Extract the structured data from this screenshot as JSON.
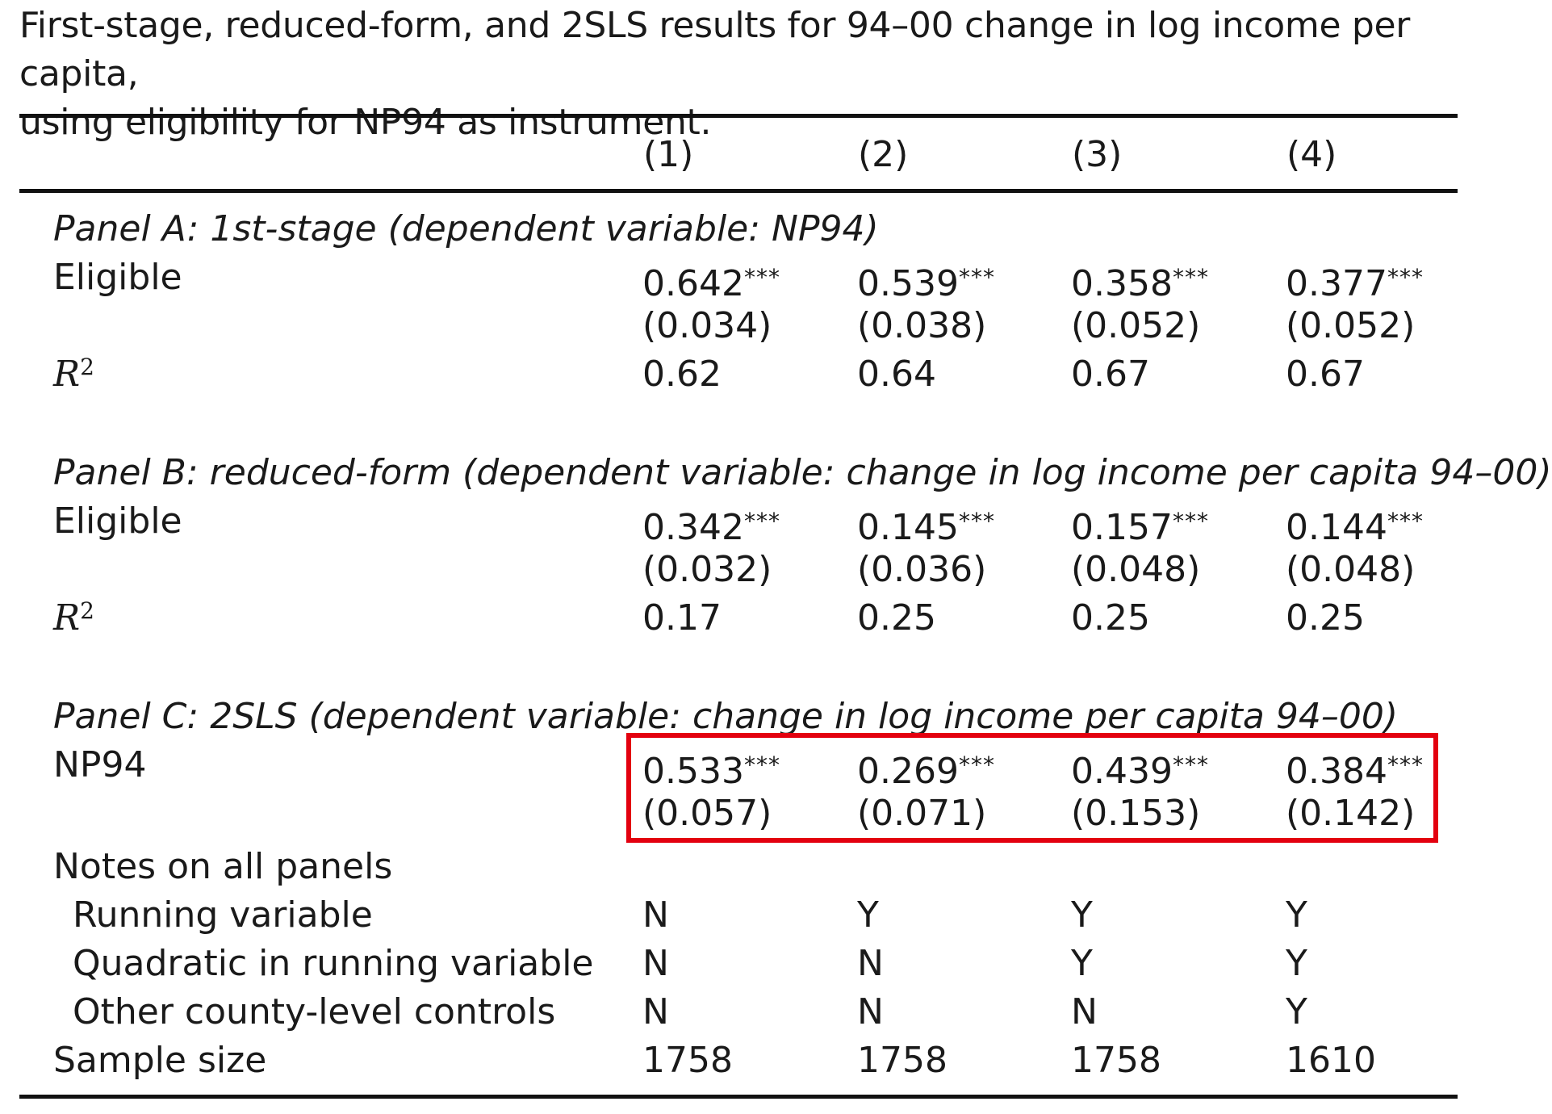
{
  "caption": {
    "line1": "First-stage, reduced-form, and 2SLS results for 94–00 change in log income per capita,",
    "line2": "using eligibility for NP94 as instrument."
  },
  "columns": [
    "(1)",
    "(2)",
    "(3)",
    "(4)"
  ],
  "panel_a": {
    "title": "Panel A: 1st-stage (dependent variable: NP94)",
    "row_label": "Eligible",
    "coefficients": [
      "0.642",
      "0.539",
      "0.358",
      "0.377"
    ],
    "stars": [
      "***",
      "***",
      "***",
      "***"
    ],
    "std_errors": [
      "(0.034)",
      "(0.038)",
      "(0.052)",
      "(0.052)"
    ],
    "r2_label": "R",
    "r2_sup": "2",
    "r2": [
      "0.62",
      "0.64",
      "0.67",
      "0.67"
    ]
  },
  "panel_b": {
    "title": "Panel B: reduced-form (dependent variable: change in log income per capita 94–00)",
    "row_label": "Eligible",
    "coefficients": [
      "0.342",
      "0.145",
      "0.157",
      "0.144"
    ],
    "stars": [
      "***",
      "***",
      "***",
      "***"
    ],
    "std_errors": [
      "(0.032)",
      "(0.036)",
      "(0.048)",
      "(0.048)"
    ],
    "r2_label": "R",
    "r2_sup": "2",
    "r2": [
      "0.17",
      "0.25",
      "0.25",
      "0.25"
    ]
  },
  "panel_c": {
    "title": "Panel C: 2SLS (dependent variable: change in log income per capita 94–00)",
    "row_label": "NP94",
    "coefficients": [
      "0.533",
      "0.269",
      "0.439",
      "0.384"
    ],
    "stars": [
      "***",
      "***",
      "***",
      "***"
    ],
    "std_errors": [
      "(0.057)",
      "(0.071)",
      "(0.153)",
      "(0.142)"
    ]
  },
  "notes": {
    "title": "Notes on all panels",
    "rows": [
      {
        "label": "Running variable",
        "values": [
          "N",
          "Y",
          "Y",
          "Y"
        ]
      },
      {
        "label": "Quadratic in running variable",
        "values": [
          "N",
          "N",
          "Y",
          "Y"
        ]
      },
      {
        "label": "Other county-level controls",
        "values": [
          "N",
          "N",
          "N",
          "Y"
        ]
      }
    ]
  },
  "sample_size": {
    "label": "Sample size",
    "values": [
      "1758",
      "1758",
      "1758",
      "1610"
    ]
  },
  "highlight_color": "#e3000f"
}
